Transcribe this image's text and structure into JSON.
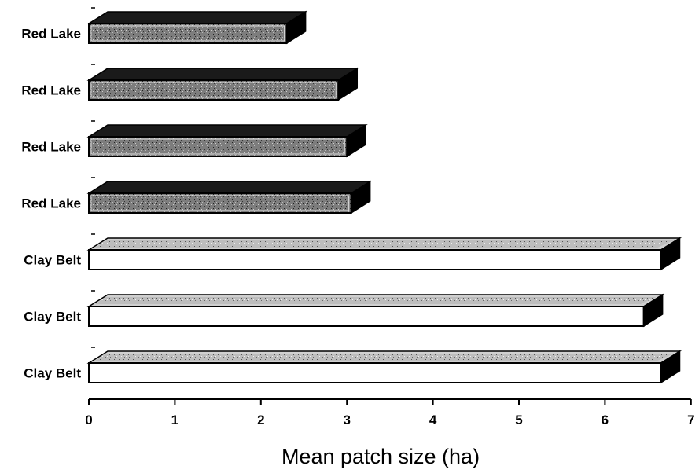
{
  "chart_data": {
    "type": "bar",
    "orientation": "horizontal",
    "style": "3d",
    "categories": [
      "Red Lake",
      "Red Lake",
      "Red Lake",
      "Red Lake",
      "Clay Belt",
      "Clay Belt",
      "Clay Belt"
    ],
    "values": [
      2.3,
      2.9,
      3.0,
      3.05,
      6.65,
      6.45,
      6.65
    ],
    "xlabel": "Mean patch size (ha)",
    "ylabel": "",
    "title": "",
    "xlim": [
      0,
      7
    ],
    "xticks": [
      "0",
      "1",
      "2",
      "3",
      "4",
      "5",
      "6",
      "7"
    ],
    "grid": false,
    "colors": {
      "red_lake_face": "#8a8a8a",
      "red_lake_top": "#1a1a1a",
      "clay_belt_face": "#ffffff",
      "clay_belt_top": "#d0d0d0",
      "side": "#000000"
    }
  }
}
